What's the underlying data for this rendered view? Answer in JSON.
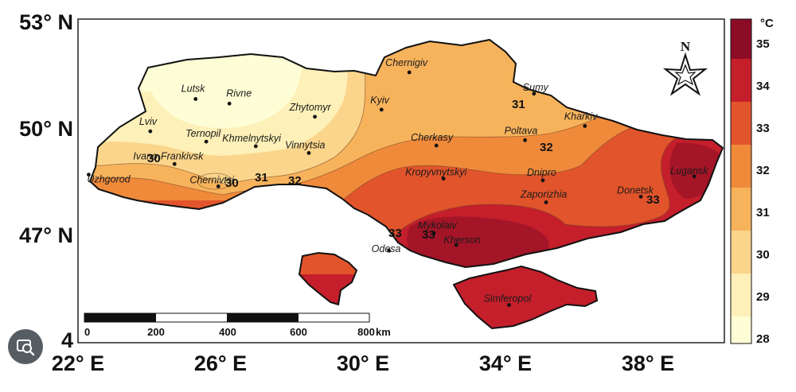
{
  "map": {
    "lat_labels": [
      "53° N",
      "50° N",
      "47° N",
      "4"
    ],
    "lon_labels": [
      "22° E",
      "26° E",
      "30° E",
      "34° E",
      "38° E"
    ],
    "cities": [
      {
        "name": "Lutsk",
        "lon": 25.3,
        "lat": 50.75
      },
      {
        "name": "Rivne",
        "lon": 26.25,
        "lat": 50.62
      },
      {
        "name": "Zhytomyr",
        "lon": 28.65,
        "lat": 50.25
      },
      {
        "name": "Kyiv",
        "lon": 30.52,
        "lat": 50.45
      },
      {
        "name": "Chernigiv",
        "lon": 31.3,
        "lat": 51.5
      },
      {
        "name": "Sumy",
        "lon": 34.8,
        "lat": 50.9
      },
      {
        "name": "Kharkiv",
        "lon": 36.23,
        "lat": 49.99
      },
      {
        "name": "Lviv",
        "lon": 24.03,
        "lat": 49.84
      },
      {
        "name": "Ternopil",
        "lon": 25.6,
        "lat": 49.55
      },
      {
        "name": "Khmelnytskyi",
        "lon": 26.99,
        "lat": 49.42
      },
      {
        "name": "Vinnytsia",
        "lon": 28.48,
        "lat": 49.23
      },
      {
        "name": "Cherkasy",
        "lon": 32.06,
        "lat": 49.44
      },
      {
        "name": "Poltava",
        "lon": 34.55,
        "lat": 49.59
      },
      {
        "name": "Ivano-Frankivsk",
        "lon": 24.71,
        "lat": 48.92
      },
      {
        "name": "Uzhgorod",
        "lon": 22.3,
        "lat": 48.62
      },
      {
        "name": "Chernivtsi",
        "lon": 25.94,
        "lat": 48.29
      },
      {
        "name": "Kropyvnytskyi",
        "lon": 32.26,
        "lat": 48.51
      },
      {
        "name": "Dnipro",
        "lon": 35.05,
        "lat": 48.46
      },
      {
        "name": "Zaporizhia",
        "lon": 35.14,
        "lat": 47.84
      },
      {
        "name": "Donetsk",
        "lon": 37.8,
        "lat": 48.0
      },
      {
        "name": "Lugansk",
        "lon": 39.3,
        "lat": 48.57
      },
      {
        "name": "Mykolaiv",
        "lon": 31.99,
        "lat": 46.97
      },
      {
        "name": "Kherson",
        "lon": 32.62,
        "lat": 46.64
      },
      {
        "name": "Odesa",
        "lon": 30.73,
        "lat": 46.48
      },
      {
        "name": "Simferopol",
        "lon": 34.1,
        "lat": 44.95
      }
    ],
    "isotherm_labels": [
      "30",
      "30",
      "31",
      "32",
      "31",
      "32",
      "33",
      "33",
      "33"
    ]
  },
  "colorbar": {
    "unit": "°C",
    "ticks": [
      "35",
      "34",
      "33",
      "32",
      "31",
      "30",
      "29",
      "28"
    ],
    "colors": {
      "28-29": "#fefed6",
      "29-30": "#fdf0b8",
      "30-31": "#fbd58b",
      "31-32": "#f7b35c",
      "32-33": "#f08a3b",
      "33-34": "#e2542b",
      "34-35": "#c41f2b",
      "35+": "#8c0c26"
    }
  },
  "scalebar": {
    "labels": [
      "0",
      "200",
      "400",
      "600",
      "800"
    ],
    "unit": "km"
  },
  "north_arrow": {
    "label": "N",
    "icon": "compass-star-icon"
  },
  "overlay_icon": "photo-search-icon"
}
